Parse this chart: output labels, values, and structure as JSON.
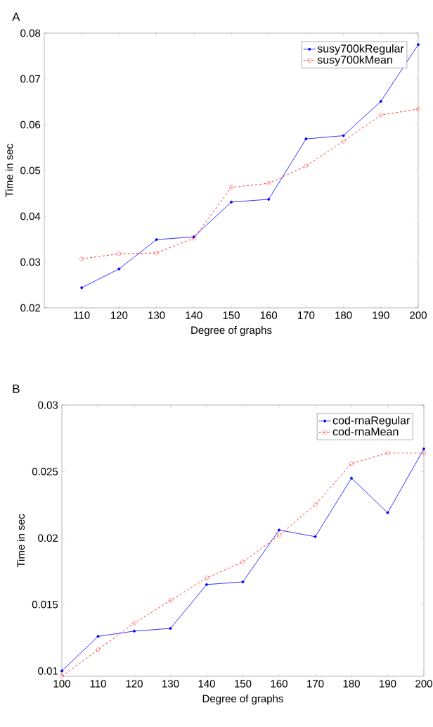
{
  "chart_data": [
    {
      "type": "line",
      "title": "A",
      "xlabel": "Degree of graphs",
      "ylabel": "Time in sec",
      "x": [
        110,
        120,
        130,
        140,
        150,
        160,
        170,
        180,
        190,
        200
      ],
      "series": [
        {
          "name": "susy700kRegular",
          "color": "#0000ff",
          "line_style": "solid",
          "values": [
            0.0244,
            0.0285,
            0.0349,
            0.0355,
            0.0431,
            0.0437,
            0.0569,
            0.0576,
            0.0651,
            0.0775
          ]
        },
        {
          "name": "susy700kMean",
          "color": "#ff0000",
          "line_style": "dashed",
          "values": [
            0.0307,
            0.0318,
            0.032,
            0.0352,
            0.0463,
            0.0472,
            0.051,
            0.0564,
            0.0621,
            0.0634
          ]
        }
      ],
      "xlim": [
        100,
        200
      ],
      "xticks": [
        110,
        120,
        130,
        140,
        150,
        160,
        170,
        180,
        190,
        200
      ],
      "ylim": [
        0.02,
        0.08
      ],
      "yticks": [
        0.02,
        0.03,
        0.04,
        0.05,
        0.06,
        0.07,
        0.08
      ],
      "grid": false,
      "legend": "top right",
      "marker": "circle"
    },
    {
      "type": "line",
      "title": "B",
      "xlabel": "Degree of graphs",
      "ylabel": "Time in sec",
      "x": [
        100,
        110,
        120,
        130,
        140,
        150,
        160,
        170,
        180,
        190,
        200
      ],
      "series": [
        {
          "name": "cod-rnaRegular",
          "color": "#0000ff",
          "line_style": "solid",
          "values": [
            0.01,
            0.0126,
            0.013,
            0.0132,
            0.0165,
            0.0167,
            0.0206,
            0.0201,
            0.0245,
            0.0219,
            0.0267
          ]
        },
        {
          "name": "cod-rnaMean",
          "color": "#ff0000",
          "line_style": "dashed",
          "values": [
            0.0096,
            0.0116,
            0.0136,
            0.0153,
            0.017,
            0.0182,
            0.0202,
            0.0225,
            0.0256,
            0.0264,
            0.0264
          ]
        }
      ],
      "xlim": [
        100,
        200
      ],
      "xticks": [
        100,
        110,
        120,
        130,
        140,
        150,
        160,
        170,
        180,
        190,
        200
      ],
      "ylim": [
        0.0096,
        0.03
      ],
      "yticks": [
        0.01,
        0.015,
        0.02,
        0.025,
        0.03
      ],
      "grid": false,
      "legend": "top right",
      "marker": "circle"
    }
  ]
}
